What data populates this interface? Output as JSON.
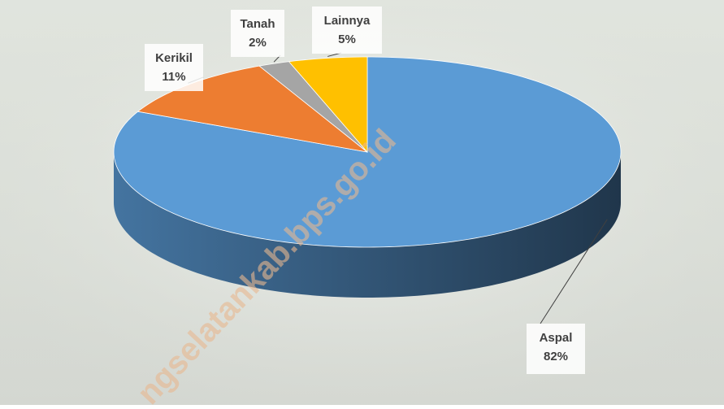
{
  "chart_data": {
    "type": "pie3d",
    "categories": [
      "Aspal",
      "Kerikil",
      "Tanah",
      "Lainnya"
    ],
    "values": [
      82,
      11,
      2,
      5
    ],
    "value_labels": [
      "82%",
      "11%",
      "2%",
      "5%"
    ],
    "colors": [
      "#5b9bd5",
      "#ed7d31",
      "#a5a5a5",
      "#ffc000"
    ],
    "watermark": "ngselatankab.bps.go.id"
  }
}
